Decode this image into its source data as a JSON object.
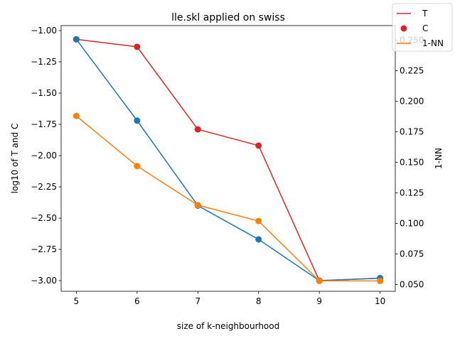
{
  "chart_data": {
    "type": "line",
    "title": "lle.skl applied on swiss",
    "xlabel": "size of k-neighbourhood",
    "ylabel_left": "log10 of T and C",
    "ylabel_right": "1-NN",
    "x": [
      5,
      6,
      7,
      8,
      9,
      10
    ],
    "xlim": [
      4.75,
      10.25
    ],
    "ylim_left": [
      -3.085,
      -0.96
    ],
    "ylim_right": [
      0.0445,
      0.262
    ],
    "x_ticks": [
      "5",
      "6",
      "7",
      "8",
      "9",
      "10"
    ],
    "y_ticks_left": [
      "−1.00",
      "−1.25",
      "−1.50",
      "−1.75",
      "−2.00",
      "−2.25",
      "−2.50",
      "−2.75",
      "−3.00"
    ],
    "y_ticks_right": [
      "0.050",
      "0.075",
      "0.100",
      "0.125",
      "0.150",
      "0.175",
      "0.200",
      "0.225",
      "0.250"
    ],
    "grid": false,
    "legend_position": "top-right",
    "series": [
      {
        "name": "T",
        "axis": "left",
        "color": "#d62728",
        "marker": "circle",
        "values": [
          -1.07,
          -1.13,
          -1.79,
          -1.92,
          -3.0,
          -2.98
        ]
      },
      {
        "name": "C",
        "axis": "left",
        "color": "#1f77b4",
        "marker": "circle",
        "values": [
          -1.07,
          -1.72,
          -2.4,
          -2.67,
          -3.0,
          -2.98
        ]
      },
      {
        "name": "1-NN",
        "axis": "right",
        "color": "#ff7f0e",
        "marker": "circle",
        "values": [
          0.188,
          0.147,
          0.115,
          0.102,
          0.053,
          0.053
        ]
      }
    ],
    "legend": [
      {
        "label": "T",
        "kind": "line",
        "color": "#d62728"
      },
      {
        "label": "C",
        "kind": "marker",
        "color": "#d62728"
      },
      {
        "label": "1-NN",
        "kind": "line",
        "color": "#ff7f0e"
      }
    ]
  }
}
